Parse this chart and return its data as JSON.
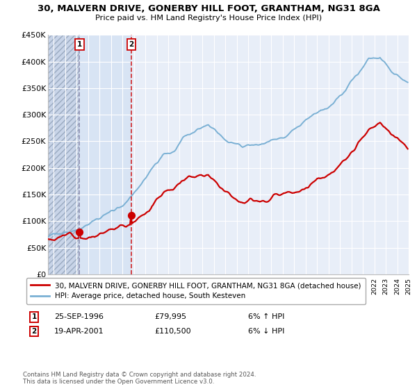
{
  "title": "30, MALVERN DRIVE, GONERBY HILL FOOT, GRANTHAM, NG31 8GA",
  "subtitle": "Price paid vs. HM Land Registry's House Price Index (HPI)",
  "ylim": [
    0,
    450000
  ],
  "yticks": [
    0,
    50000,
    100000,
    150000,
    200000,
    250000,
    300000,
    350000,
    400000,
    450000
  ],
  "ytick_labels": [
    "£0",
    "£50K",
    "£100K",
    "£150K",
    "£200K",
    "£250K",
    "£300K",
    "£350K",
    "£400K",
    "£450K"
  ],
  "sale_year1": 1996.75,
  "sale_year2": 2001.29,
  "sale_price1": 79995,
  "sale_price2": 110500,
  "sale_labels": [
    "1",
    "2"
  ],
  "sale_info": [
    {
      "label": "1",
      "date": "25-SEP-1996",
      "price": "£79,995",
      "hpi": "6% ↑ HPI"
    },
    {
      "label": "2",
      "date": "19-APR-2001",
      "price": "£110,500",
      "hpi": "6% ↓ HPI"
    }
  ],
  "legend_line1_label": "30, MALVERN DRIVE, GONERBY HILL FOOT, GRANTHAM, NG31 8GA (detached house)",
  "legend_line1_color": "#cc0000",
  "legend_line2_label": "HPI: Average price, detached house, South Kesteven",
  "legend_line2_color": "#7ab0d4",
  "footnote": "Contains HM Land Registry data © Crown copyright and database right 2024.\nThis data is licensed under the Open Government Licence v3.0.",
  "bg_color": "#ffffff",
  "plot_bg_color": "#e8eef8",
  "grid_color": "#ffffff",
  "hatch_region_color": "#c8d4e8",
  "blue_region_color": "#d8e4f4"
}
